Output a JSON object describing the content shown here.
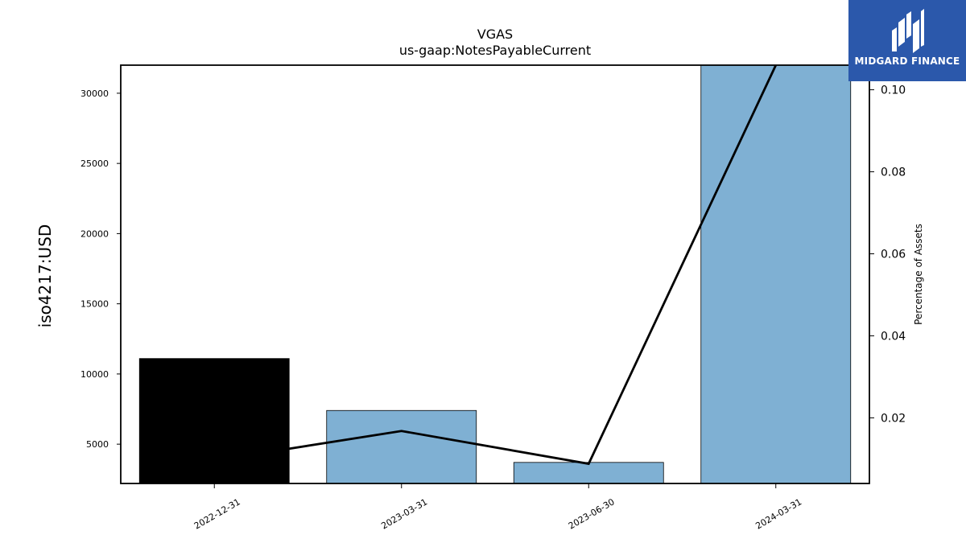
{
  "brand": {
    "name": "MIDGARD FINANCE",
    "color": "#2b58ab"
  },
  "chart_data": {
    "type": "bar",
    "title": "VGAS",
    "subtitle": "us-gaap:NotesPayableCurrent",
    "ylabel": "iso4217:USD",
    "y2label": "Percentage of Assets",
    "categories": [
      "2022-12-31",
      "2023-03-31",
      "2023-06-30",
      "2024-03-31"
    ],
    "ylim": [
      2200,
      32000
    ],
    "yticks": [
      5000,
      10000,
      15000,
      20000,
      25000,
      30000
    ],
    "y2lim": [
      0.004,
      0.106
    ],
    "y2ticks": [
      0.02,
      0.04,
      0.06,
      0.08,
      0.1
    ],
    "y2ticklabels": [
      "0.02",
      "0.04",
      "0.06",
      "0.08",
      "0.10"
    ],
    "series": [
      {
        "kind": "bar",
        "axis": "left",
        "values": [
          11100,
          7400,
          3700,
          32000
        ],
        "colors": [
          "#000000",
          "#7fb0d3",
          "#7fb0d3",
          "#7fb0d3"
        ]
      },
      {
        "kind": "line",
        "axis": "right",
        "color": "#000000",
        "values": [
          0.0096,
          0.0168,
          0.0088,
          0.106
        ]
      }
    ]
  }
}
